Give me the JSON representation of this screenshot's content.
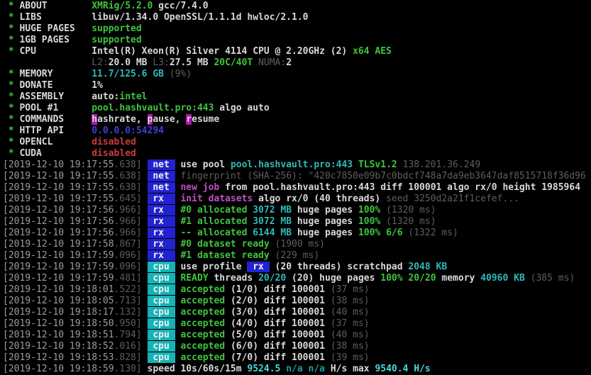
{
  "terminal": {
    "app": "xmrig-console",
    "colors": {
      "white": "#d9d9d9",
      "green": "#3fc43f",
      "cyan": "#30b9b9",
      "bright_cyan": "#4ad9d9",
      "dark_cyan": "#1f9d9d",
      "magenta": "#c050c0",
      "red": "#cb3b3b",
      "gray": "#9c9c9c",
      "dim": "#5e5e5e",
      "blue": "#4040d8",
      "badge_text": "#f0f0f0",
      "badge_blue_bg": "#2222d0",
      "badge_cyan_bg": "#15b3b8",
      "highlight_magenta_bg": "#b313b3"
    },
    "header_lines": [
      {
        "label": "ABOUT",
        "segments": [
          [
            "XMRig/5.2.0",
            "green"
          ],
          [
            " gcc/7.4.0",
            "white"
          ]
        ]
      },
      {
        "label": "LIBS",
        "segments": [
          [
            "libuv/1.34.0 OpenSSL/1.1.1d hwloc/2.1.0",
            "white"
          ]
        ]
      },
      {
        "label": "HUGE PAGES",
        "segments": [
          [
            "supported",
            "green"
          ]
        ]
      },
      {
        "label": "1GB PAGES",
        "segments": [
          [
            "supported",
            "green"
          ]
        ]
      },
      {
        "label": "CPU",
        "segments": [
          [
            "Intel(R) Xeon(R) Silver 4114 CPU @ 2.20GHz (2) ",
            "white"
          ],
          [
            "x64 AES",
            "green"
          ]
        ]
      },
      {
        "label": "",
        "segments": [
          [
            "L2:",
            "dim"
          ],
          [
            "20.0 MB ",
            "white"
          ],
          [
            "L3:",
            "dim"
          ],
          [
            "27.5 MB ",
            "white"
          ],
          [
            "20C/40T ",
            "green"
          ],
          [
            "NUMA:",
            "dim"
          ],
          [
            "2",
            "white"
          ]
        ]
      },
      {
        "label": "MEMORY",
        "segments": [
          [
            "11.7/125.6 GB ",
            "cyan"
          ],
          [
            "(9%)",
            "dim"
          ]
        ]
      },
      {
        "label": "DONATE",
        "segments": [
          [
            "1%",
            "white"
          ]
        ]
      },
      {
        "label": "ASSEMBLY",
        "segments": [
          [
            "auto:",
            "white"
          ],
          [
            "intel",
            "green"
          ]
        ]
      },
      {
        "label": "POOL #1",
        "segments": [
          [
            "pool.hashvault.pro:443",
            "green"
          ],
          [
            " algo auto",
            "white"
          ]
        ]
      },
      {
        "label": "COMMANDS",
        "segments": [
          [
            "h",
            "white",
            "highlight_magenta_bg"
          ],
          [
            "ashrate, ",
            "white"
          ],
          [
            "p",
            "white",
            "highlight_magenta_bg"
          ],
          [
            "ause, ",
            "white"
          ],
          [
            "r",
            "white",
            "highlight_magenta_bg"
          ],
          [
            "esume",
            "white"
          ]
        ]
      },
      {
        "label": "HTTP API",
        "segments": [
          [
            "0.0.0.0:54294",
            "blue"
          ]
        ]
      },
      {
        "label": "OPENCL",
        "segments": [
          [
            "disabled",
            "red"
          ]
        ]
      },
      {
        "label": "CUDA",
        "segments": [
          [
            "disabled",
            "red"
          ]
        ]
      }
    ],
    "log_lines": [
      {
        "ts": "2019-12-10 19:17:55",
        "ms": "638",
        "tag": "net",
        "tag_bg": "badge_blue_bg",
        "segments": [
          [
            "use pool ",
            "white"
          ],
          [
            "pool.hashvault.pro:443 ",
            "cyan"
          ],
          [
            "TLSv1.2 ",
            "green"
          ],
          [
            "138.201.36.249",
            "dim"
          ]
        ]
      },
      {
        "ts": "2019-12-10 19:17:55",
        "ms": "638",
        "tag": "net",
        "tag_bg": "badge_blue_bg",
        "segments": [
          [
            "fingerprint (SHA-256): \"420c7850e09b7c0bdcf748a7da9eb3647daf8515718f36d96",
            "dim"
          ]
        ]
      },
      {
        "ts": "2019-12-10 19:17:55",
        "ms": "638",
        "tag": "net",
        "tag_bg": "badge_blue_bg",
        "segments": [
          [
            "new job ",
            "magenta"
          ],
          [
            "from pool.hashvault.pro:443 diff 100001 algo rx/0 height 1985964",
            "white"
          ]
        ]
      },
      {
        "ts": "2019-12-10 19:17:55",
        "ms": "645",
        "tag": "rx",
        "tag_bg": "badge_blue_bg",
        "segments": [
          [
            "init datasets ",
            "magenta"
          ],
          [
            "algo rx/0 (40 threads) ",
            "white"
          ],
          [
            "seed 3250d2a21f1cefef...",
            "dim"
          ]
        ]
      },
      {
        "ts": "2019-12-10 19:17:56",
        "ms": "966",
        "tag": "rx",
        "tag_bg": "badge_blue_bg",
        "segments": [
          [
            "#0 allocated ",
            "green"
          ],
          [
            "3072 MB ",
            "cyan"
          ],
          [
            "huge pages ",
            "white"
          ],
          [
            "100% ",
            "green"
          ],
          [
            "(1320 ms)",
            "dim"
          ]
        ]
      },
      {
        "ts": "2019-12-10 19:17:56",
        "ms": "966",
        "tag": "rx",
        "tag_bg": "badge_blue_bg",
        "segments": [
          [
            "#1 allocated ",
            "green"
          ],
          [
            "3072 MB ",
            "cyan"
          ],
          [
            "huge pages ",
            "white"
          ],
          [
            "100% ",
            "green"
          ],
          [
            "(1320 ms)",
            "dim"
          ]
        ]
      },
      {
        "ts": "2019-12-10 19:17:56",
        "ms": "966",
        "tag": "rx",
        "tag_bg": "badge_blue_bg",
        "segments": [
          [
            "-- allocated ",
            "green"
          ],
          [
            "6144 MB ",
            "cyan"
          ],
          [
            "huge pages ",
            "white"
          ],
          [
            "100% 6/6 ",
            "green"
          ],
          [
            "(1322 ms)",
            "dim"
          ]
        ]
      },
      {
        "ts": "2019-12-10 19:17:58",
        "ms": "867",
        "tag": "rx",
        "tag_bg": "badge_blue_bg",
        "segments": [
          [
            "#0 dataset ready ",
            "green"
          ],
          [
            "(1900 ms)",
            "dim"
          ]
        ]
      },
      {
        "ts": "2019-12-10 19:17:59",
        "ms": "096",
        "tag": "rx",
        "tag_bg": "badge_blue_bg",
        "segments": [
          [
            "#1 dataset ready ",
            "green"
          ],
          [
            "(229 ms)",
            "dim"
          ]
        ]
      },
      {
        "ts": "2019-12-10 19:17:59",
        "ms": "096",
        "tag": "cpu",
        "tag_bg": "badge_cyan_bg",
        "segments": [
          [
            "use profile ",
            "white"
          ],
          [
            " rx ",
            "badge_text",
            "badge_blue_bg"
          ],
          [
            " (20 threads) scratchpad ",
            "white"
          ],
          [
            "2048 KB",
            "cyan"
          ]
        ]
      },
      {
        "ts": "2019-12-10 19:17:59",
        "ms": "481",
        "tag": "cpu",
        "tag_bg": "badge_cyan_bg",
        "segments": [
          [
            "READY",
            "green"
          ],
          [
            " threads ",
            "white"
          ],
          [
            "20/20",
            "cyan"
          ],
          [
            " (20) huge pages ",
            "white"
          ],
          [
            "100% 20/20",
            "green"
          ],
          [
            " memory ",
            "white"
          ],
          [
            "40960 KB ",
            "cyan"
          ],
          [
            "(385 ms)",
            "dim"
          ]
        ]
      },
      {
        "ts": "2019-12-10 19:18:01",
        "ms": "522",
        "tag": "cpu",
        "tag_bg": "badge_cyan_bg",
        "segments": [
          [
            "accepted ",
            "green"
          ],
          [
            "(1/0) diff 100001 ",
            "white"
          ],
          [
            "(37 ms)",
            "dim"
          ]
        ]
      },
      {
        "ts": "2019-12-10 19:18:05",
        "ms": "713",
        "tag": "cpu",
        "tag_bg": "badge_cyan_bg",
        "segments": [
          [
            "accepted ",
            "green"
          ],
          [
            "(2/0) diff 100001 ",
            "white"
          ],
          [
            "(38 ms)",
            "dim"
          ]
        ]
      },
      {
        "ts": "2019-12-10 19:18:17",
        "ms": "132",
        "tag": "cpu",
        "tag_bg": "badge_cyan_bg",
        "segments": [
          [
            "accepted ",
            "green"
          ],
          [
            "(3/0) diff 100001 ",
            "white"
          ],
          [
            "(40 ms)",
            "dim"
          ]
        ]
      },
      {
        "ts": "2019-12-10 19:18:50",
        "ms": "950",
        "tag": "cpu",
        "tag_bg": "badge_cyan_bg",
        "segments": [
          [
            "accepted ",
            "green"
          ],
          [
            "(4/0) diff 100001 ",
            "white"
          ],
          [
            "(37 ms)",
            "dim"
          ]
        ]
      },
      {
        "ts": "2019-12-10 19:18:51",
        "ms": "794",
        "tag": "cpu",
        "tag_bg": "badge_cyan_bg",
        "segments": [
          [
            "accepted ",
            "green"
          ],
          [
            "(5/0) diff 100001 ",
            "white"
          ],
          [
            "(40 ms)",
            "dim"
          ]
        ]
      },
      {
        "ts": "2019-12-10 19:18:52",
        "ms": "016",
        "tag": "cpu",
        "tag_bg": "badge_cyan_bg",
        "segments": [
          [
            "accepted ",
            "green"
          ],
          [
            "(6/0) diff 100001 ",
            "white"
          ],
          [
            "(38 ms)",
            "dim"
          ]
        ]
      },
      {
        "ts": "2019-12-10 19:18:53",
        "ms": "828",
        "tag": "cpu",
        "tag_bg": "badge_cyan_bg",
        "segments": [
          [
            "accepted ",
            "green"
          ],
          [
            "(7/0) diff 100001 ",
            "white"
          ],
          [
            "(39 ms)",
            "dim"
          ]
        ]
      },
      {
        "ts": "2019-12-10 19:18:59",
        "ms": "130",
        "tag": null,
        "tag_bg": null,
        "segments": [
          [
            "speed 10s/60s/15m ",
            "white"
          ],
          [
            "9524.5 ",
            "bright_cyan"
          ],
          [
            "n/a n/a ",
            "dark_cyan"
          ],
          [
            "H/s max ",
            "white"
          ],
          [
            "9540.4 H/s",
            "bright_cyan"
          ]
        ]
      }
    ]
  }
}
